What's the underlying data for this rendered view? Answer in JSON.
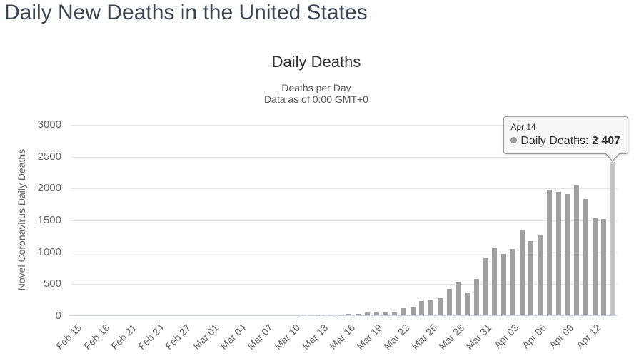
{
  "page": {
    "title": "Daily New Deaths in the United States"
  },
  "chart": {
    "title": "Daily Deaths",
    "subtitle_line1": "Deaths per Day",
    "subtitle_line2": "Data as of 0:00 GMT+0",
    "y_axis_title": "Novel Coronavirus Daily Deaths",
    "tooltip": {
      "date": "Apr 14",
      "series_label": "Daily Deaths:",
      "value": "2 407"
    }
  },
  "chart_data": {
    "type": "bar",
    "title": "Daily Deaths",
    "subtitle": [
      "Deaths per Day",
      "Data as of 0:00 GMT+0"
    ],
    "xlabel": "",
    "ylabel": "Novel Coronavirus Daily Deaths",
    "ylim": [
      0,
      3000
    ],
    "yticks": [
      0,
      500,
      1000,
      1500,
      2000,
      2500,
      3000
    ],
    "xtick_step": 3,
    "grid": true,
    "legend": false,
    "categories": [
      "Feb 15",
      "Feb 16",
      "Feb 17",
      "Feb 18",
      "Feb 19",
      "Feb 20",
      "Feb 21",
      "Feb 22",
      "Feb 23",
      "Feb 24",
      "Feb 25",
      "Feb 26",
      "Feb 27",
      "Feb 28",
      "Feb 29",
      "Mar 01",
      "Mar 02",
      "Mar 03",
      "Mar 04",
      "Mar 05",
      "Mar 06",
      "Mar 07",
      "Mar 08",
      "Mar 09",
      "Mar 10",
      "Mar 11",
      "Mar 12",
      "Mar 13",
      "Mar 14",
      "Mar 15",
      "Mar 16",
      "Mar 17",
      "Mar 18",
      "Mar 19",
      "Mar 20",
      "Mar 21",
      "Mar 22",
      "Mar 23",
      "Mar 24",
      "Mar 25",
      "Mar 26",
      "Mar 27",
      "Mar 28",
      "Mar 29",
      "Mar 30",
      "Mar 31",
      "Apr 01",
      "Apr 02",
      "Apr 03",
      "Apr 04",
      "Apr 05",
      "Apr 06",
      "Apr 07",
      "Apr 08",
      "Apr 09",
      "Apr 10",
      "Apr 11",
      "Apr 12",
      "Apr 13",
      "Apr 14"
    ],
    "series": [
      {
        "name": "Daily Deaths",
        "values": [
          0,
          0,
          0,
          0,
          0,
          0,
          0,
          0,
          0,
          0,
          0,
          0,
          0,
          0,
          1,
          1,
          5,
          3,
          2,
          1,
          3,
          2,
          3,
          4,
          4,
          8,
          3,
          8,
          9,
          11,
          18,
          23,
          41,
          57,
          49,
          46,
          111,
          140,
          225,
          247,
          268,
          411,
          525,
          363,
          573,
          912,
          1049,
          968,
          1036,
          1331,
          1165,
          1255,
          1970,
          1940,
          1900,
          2035,
          1830,
          1528,
          1509,
          2407
        ]
      }
    ],
    "hover_point": {
      "index": 59,
      "category": "Apr 14",
      "value": 2407,
      "value_display": "2 407"
    },
    "colors": {
      "bar": "#a0a0a0",
      "bar_hover": "#c4c4c4",
      "gridline": "#e6e6e6",
      "axis_line": "#ccd6eb",
      "tick_label": "#666666",
      "title": "#333333",
      "subtitle": "#555555"
    }
  }
}
